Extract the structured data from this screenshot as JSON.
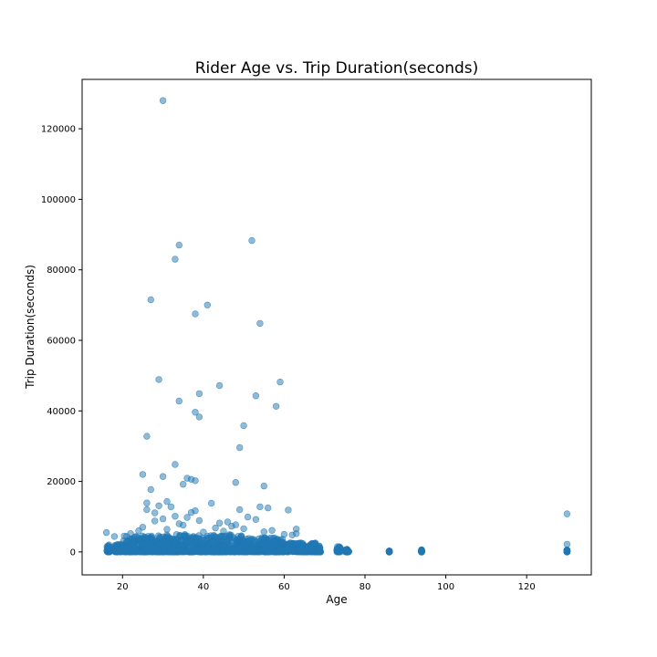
{
  "chart_data": {
    "type": "scatter",
    "title": "Rider Age vs. Trip Duration(seconds)",
    "xlabel": "Age",
    "ylabel": "Trip Duration(seconds)",
    "xlim": [
      10,
      136
    ],
    "ylim": [
      -6500,
      134000
    ],
    "xticks": [
      20,
      40,
      60,
      80,
      100,
      120
    ],
    "yticks": [
      0,
      20000,
      40000,
      60000,
      80000,
      100000,
      120000
    ],
    "grid": false,
    "legend": "none",
    "marker_color": "#1f77b4",
    "marker_alpha": 0.5,
    "points": [
      [
        30,
        128000
      ],
      [
        52,
        88300
      ],
      [
        34,
        87000
      ],
      [
        33,
        83000
      ],
      [
        27,
        71500
      ],
      [
        41,
        70000
      ],
      [
        38,
        67500
      ],
      [
        54,
        64800
      ],
      [
        29,
        48900
      ],
      [
        59,
        48200
      ],
      [
        44,
        47200
      ],
      [
        39,
        44900
      ],
      [
        53,
        44300
      ],
      [
        34,
        42800
      ],
      [
        58,
        41300
      ],
      [
        38,
        39600
      ],
      [
        39,
        38300
      ],
      [
        50,
        35800
      ],
      [
        26,
        32800
      ],
      [
        49,
        29600
      ],
      [
        33,
        24800
      ],
      [
        25,
        22000
      ],
      [
        30,
        21400
      ],
      [
        36,
        20900
      ],
      [
        37,
        20600
      ],
      [
        38,
        20200
      ],
      [
        48,
        19700
      ],
      [
        35,
        19200
      ],
      [
        55,
        18700
      ],
      [
        27,
        17700
      ],
      [
        31,
        14300
      ],
      [
        26,
        13900
      ],
      [
        42,
        13800
      ],
      [
        29,
        13100
      ],
      [
        32,
        12800
      ],
      [
        54,
        12800
      ],
      [
        56,
        12500
      ],
      [
        49,
        12000
      ],
      [
        61,
        11900
      ],
      [
        38,
        11700
      ],
      [
        37,
        11200
      ],
      [
        28,
        11100
      ],
      [
        26,
        12000
      ],
      [
        130,
        10800
      ],
      [
        33,
        10100
      ],
      [
        51,
        9900
      ],
      [
        36,
        9800
      ],
      [
        30,
        9400
      ],
      [
        53,
        9200
      ],
      [
        39,
        8900
      ],
      [
        46,
        8500
      ],
      [
        44,
        8200
      ],
      [
        28,
        8800
      ],
      [
        47,
        7300
      ],
      [
        63,
        6500
      ],
      [
        16,
        5500
      ],
      [
        18,
        4400
      ],
      [
        63,
        5200
      ],
      [
        62,
        4800
      ],
      [
        130,
        2200
      ],
      [
        25,
        7000
      ],
      [
        35,
        7600
      ],
      [
        43,
        6800
      ],
      [
        57,
        6100
      ],
      [
        22,
        5200
      ],
      [
        24,
        6000
      ],
      [
        31,
        6400
      ],
      [
        40,
        5600
      ],
      [
        45,
        5900
      ],
      [
        50,
        6600
      ],
      [
        55,
        5700
      ],
      [
        60,
        5000
      ],
      [
        34,
        8000
      ],
      [
        41,
        4500
      ],
      [
        48,
        7700
      ]
    ],
    "dense_band": {
      "note": "",
      "groups": [
        [
          16,
          17,
          0,
          2000
        ],
        [
          18,
          20,
          0,
          2200
        ],
        [
          20,
          30,
          0,
          4600
        ],
        [
          30,
          50,
          0,
          5000
        ],
        [
          50,
          60,
          0,
          4000
        ],
        [
          60,
          68,
          0,
          2600
        ],
        [
          68,
          69,
          0,
          1800
        ],
        [
          73,
          74,
          0,
          1500
        ],
        [
          75,
          76,
          0,
          800
        ],
        [
          86,
          86,
          0,
          300
        ],
        [
          94,
          94,
          0,
          600
        ],
        [
          130,
          130,
          0,
          600
        ]
      ]
    }
  }
}
